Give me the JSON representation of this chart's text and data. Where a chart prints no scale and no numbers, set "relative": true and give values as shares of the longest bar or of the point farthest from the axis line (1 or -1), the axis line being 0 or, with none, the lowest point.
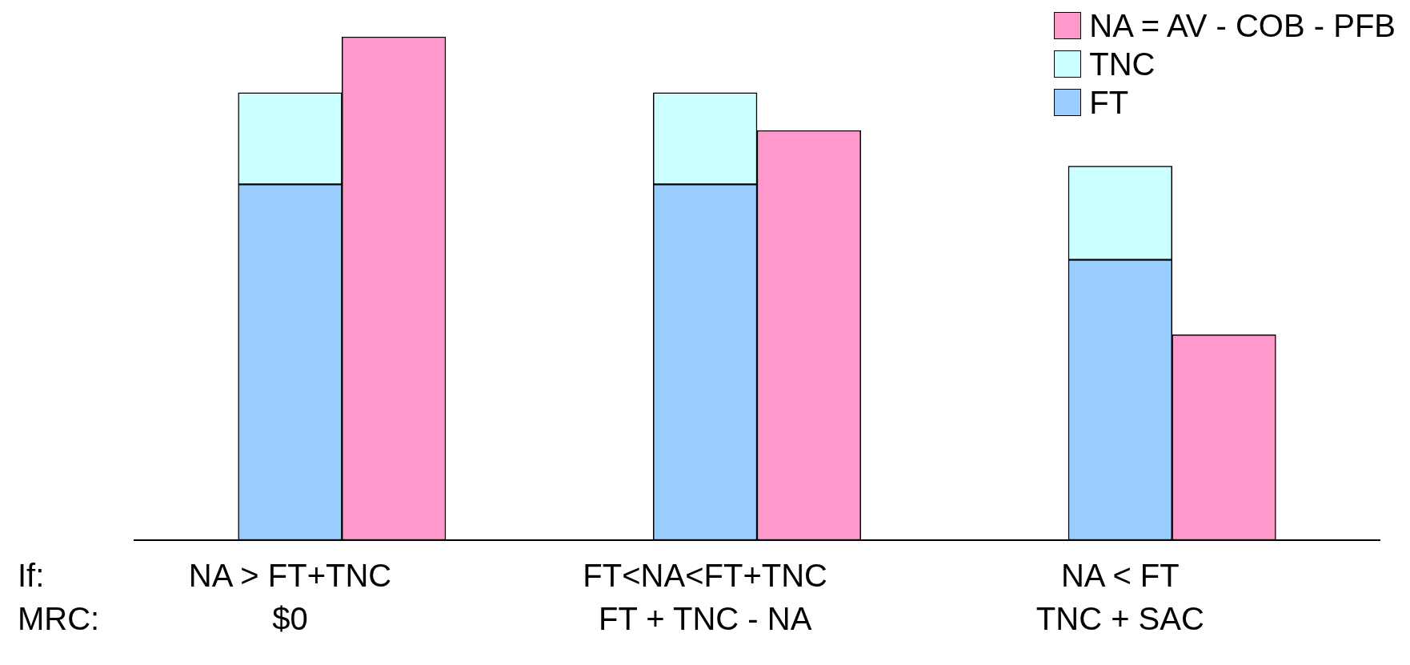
{
  "chart_data": {
    "type": "bar",
    "relative": true,
    "stacked": true,
    "categories": [
      null,
      "NA > FT+TNC\n$0",
      null,
      null,
      null,
      "FT<NA<FT+TNC\nFT + TNC - NA",
      null,
      null,
      null,
      "NA < FT\nTNC + SAC",
      null,
      null
    ],
    "series": [
      {
        "name": "FT",
        "color": "#99ccff",
        "values": [
          null,
          0.707,
          null,
          null,
          null,
          0.707,
          null,
          null,
          null,
          0.557,
          null,
          null
        ]
      },
      {
        "name": "TNC",
        "color": "#ccffff",
        "values": [
          null,
          0.182,
          null,
          null,
          null,
          0.182,
          null,
          null,
          null,
          0.186,
          null,
          null
        ]
      },
      {
        "name": "NA = AV - COB - PFB",
        "color": "#ff99cc",
        "values": [
          null,
          null,
          1,
          null,
          null,
          null,
          0.814,
          null,
          null,
          null,
          0.408,
          null
        ]
      }
    ],
    "annotations": [
      "If:",
      "MRC:"
    ],
    "legend": "top right",
    "grid": false
  }
}
